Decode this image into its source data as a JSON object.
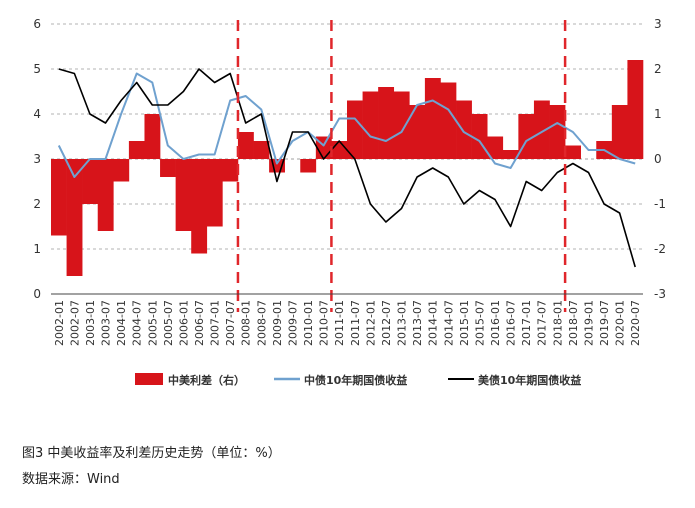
{
  "caption": {
    "title": "图3 中美收益率及利差历史走势（单位：%）",
    "source": "数据来源：Wind"
  },
  "legend": {
    "spread": "中美利差（右）",
    "cn": "中债10年期国债收益",
    "us": "美债10年期国债收益"
  },
  "colors": {
    "spread": "#d7141a",
    "cn": "#6fa1cf",
    "us": "#000000",
    "marker": "#e0262b"
  },
  "chart_data": {
    "type": "bar+line",
    "categories": [
      "2002-01",
      "2002-07",
      "2003-01",
      "2003-07",
      "2004-01",
      "2004-07",
      "2005-01",
      "2005-07",
      "2006-01",
      "2006-07",
      "2007-01",
      "2007-07",
      "2008-01",
      "2008-07",
      "2009-01",
      "2009-07",
      "2010-01",
      "2010-07",
      "2011-01",
      "2011-07",
      "2012-01",
      "2012-07",
      "2013-01",
      "2013-07",
      "2014-01",
      "2014-07",
      "2015-01",
      "2015-07",
      "2016-01",
      "2016-07",
      "2017-01",
      "2017-07",
      "2018-01",
      "2018-07",
      "2019-01",
      "2019-07",
      "2020-01",
      "2020-07"
    ],
    "left_axis": {
      "ylim": [
        0,
        6
      ],
      "ticks": [
        "0",
        "1",
        "2",
        "3",
        "4",
        "5",
        "6"
      ]
    },
    "right_axis": {
      "ylim": [
        -3,
        3
      ],
      "ticks": [
        "-3",
        "-2",
        "-1",
        "0",
        "1",
        "2",
        "3"
      ]
    },
    "grid": "horizontal dashed",
    "legend_position": "bottom",
    "markers": [
      "2008-01",
      "2011-01",
      "2018-07"
    ],
    "series": [
      {
        "name": "中美利差（右）",
        "kind": "bar",
        "axis": "right",
        "values": [
          -1.7,
          -2.6,
          -1.0,
          -1.6,
          -0.5,
          0.4,
          1.0,
          -0.4,
          -1.6,
          -2.1,
          -1.5,
          -0.5,
          0.6,
          0.4,
          -0.3,
          0.0,
          -0.3,
          0.5,
          0.4,
          1.3,
          1.5,
          1.6,
          1.5,
          1.2,
          1.8,
          1.7,
          1.3,
          1.0,
          0.5,
          0.2,
          1.0,
          1.3,
          1.2,
          0.3,
          0.0,
          0.4,
          1.2,
          2.2
        ]
      },
      {
        "name": "中债10年期国债收益",
        "kind": "line",
        "axis": "left",
        "values": [
          3.3,
          2.6,
          3.0,
          3.0,
          4.0,
          4.9,
          4.7,
          3.3,
          3.0,
          3.1,
          3.1,
          4.3,
          4.4,
          4.1,
          2.9,
          3.4,
          3.6,
          3.3,
          3.9,
          3.9,
          3.5,
          3.4,
          3.6,
          4.2,
          4.3,
          4.1,
          3.6,
          3.4,
          2.9,
          2.8,
          3.4,
          3.6,
          3.8,
          3.6,
          3.2,
          3.2,
          3.0,
          2.9
        ]
      },
      {
        "name": "美债10年期国债收益",
        "kind": "line",
        "axis": "left",
        "values": [
          5.0,
          4.9,
          4.0,
          3.8,
          4.3,
          4.7,
          4.2,
          4.2,
          4.5,
          5.0,
          4.7,
          4.9,
          3.8,
          4.0,
          2.5,
          3.6,
          3.6,
          3.0,
          3.4,
          3.0,
          2.0,
          1.6,
          1.9,
          2.6,
          2.8,
          2.6,
          2.0,
          2.3,
          2.1,
          1.5,
          2.5,
          2.3,
          2.7,
          2.9,
          2.7,
          2.0,
          1.8,
          0.6
        ]
      }
    ]
  }
}
